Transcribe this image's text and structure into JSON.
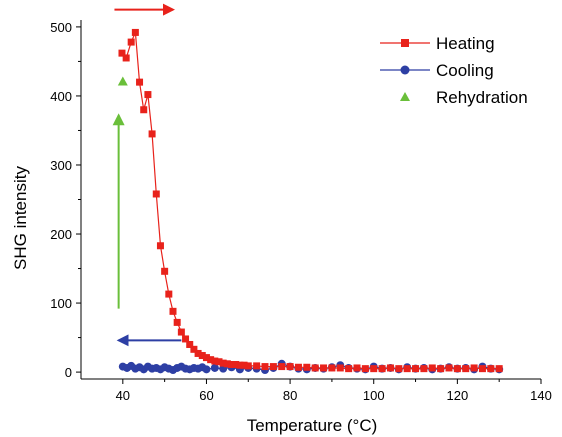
{
  "chart_data": {
    "type": "scatter",
    "title": "",
    "xlabel": "Temperature (°C)",
    "ylabel": "SHG intensity",
    "xlim": [
      30,
      140
    ],
    "ylim": [
      -10,
      510
    ],
    "x_ticks": [
      40,
      60,
      80,
      100,
      120,
      140
    ],
    "y_ticks": [
      0,
      100,
      200,
      300,
      400,
      500
    ],
    "legend_position": "top-right",
    "series": [
      {
        "name": "Heating",
        "color": "#e8221b",
        "marker": "square",
        "line": true,
        "points": [
          [
            39.8,
            462
          ],
          [
            40.8,
            455
          ],
          [
            42,
            478
          ],
          [
            43,
            492
          ],
          [
            44,
            420
          ],
          [
            45,
            380
          ],
          [
            46,
            402
          ],
          [
            47,
            345
          ],
          [
            48,
            258
          ],
          [
            49,
            183
          ],
          [
            50,
            146
          ],
          [
            51,
            113
          ],
          [
            52,
            88
          ],
          [
            53,
            72
          ],
          [
            54,
            58
          ],
          [
            55,
            48
          ],
          [
            56,
            40
          ],
          [
            57,
            33
          ],
          [
            58,
            27
          ],
          [
            59,
            24
          ],
          [
            60,
            21
          ],
          [
            61,
            18
          ],
          [
            62,
            16
          ],
          [
            63,
            15
          ],
          [
            64,
            13
          ],
          [
            65,
            12
          ],
          [
            66,
            11
          ],
          [
            67,
            11
          ],
          [
            68,
            10
          ],
          [
            69,
            10
          ],
          [
            70,
            9
          ],
          [
            72,
            9
          ],
          [
            74,
            8
          ],
          [
            76,
            8
          ],
          [
            78,
            8
          ],
          [
            80,
            8
          ],
          [
            82,
            7
          ],
          [
            84,
            7
          ],
          [
            86,
            6
          ],
          [
            88,
            6
          ],
          [
            90,
            6
          ],
          [
            92,
            6
          ],
          [
            94,
            5
          ],
          [
            96,
            6
          ],
          [
            98,
            5
          ],
          [
            100,
            5
          ],
          [
            102,
            5
          ],
          [
            104,
            6
          ],
          [
            106,
            5
          ],
          [
            108,
            5
          ],
          [
            110,
            5
          ],
          [
            112,
            5
          ],
          [
            114,
            6
          ],
          [
            116,
            5
          ],
          [
            118,
            6
          ],
          [
            120,
            5
          ],
          [
            122,
            5
          ],
          [
            124,
            6
          ],
          [
            126,
            5
          ],
          [
            128,
            5
          ],
          [
            130,
            5
          ]
        ]
      },
      {
        "name": "Cooling",
        "color": "#2d3fa4",
        "marker": "circle",
        "line": true,
        "points": [
          [
            40,
            8
          ],
          [
            41,
            6
          ],
          [
            42,
            9
          ],
          [
            43,
            5
          ],
          [
            44,
            7
          ],
          [
            45,
            4
          ],
          [
            46,
            8
          ],
          [
            47,
            5
          ],
          [
            48,
            6
          ],
          [
            49,
            4
          ],
          [
            50,
            7
          ],
          [
            51,
            5
          ],
          [
            52,
            3
          ],
          [
            53,
            6
          ],
          [
            54,
            8
          ],
          [
            55,
            5
          ],
          [
            56,
            4
          ],
          [
            57,
            6
          ],
          [
            58,
            5
          ],
          [
            59,
            7
          ],
          [
            60,
            4
          ],
          [
            62,
            6
          ],
          [
            64,
            5
          ],
          [
            66,
            7
          ],
          [
            68,
            4
          ],
          [
            70,
            6
          ],
          [
            72,
            5
          ],
          [
            74,
            3
          ],
          [
            76,
            6
          ],
          [
            78,
            12
          ],
          [
            80,
            8
          ],
          [
            82,
            5
          ],
          [
            84,
            4
          ],
          [
            86,
            6
          ],
          [
            88,
            5
          ],
          [
            90,
            7
          ],
          [
            92,
            10
          ],
          [
            94,
            6
          ],
          [
            96,
            5
          ],
          [
            98,
            4
          ],
          [
            100,
            8
          ],
          [
            102,
            5
          ],
          [
            104,
            6
          ],
          [
            106,
            4
          ],
          [
            108,
            7
          ],
          [
            110,
            5
          ],
          [
            112,
            6
          ],
          [
            114,
            4
          ],
          [
            116,
            5
          ],
          [
            118,
            7
          ],
          [
            120,
            5
          ],
          [
            122,
            6
          ],
          [
            124,
            4
          ],
          [
            126,
            8
          ],
          [
            128,
            5
          ],
          [
            130,
            4
          ]
        ]
      },
      {
        "name": "Rehydration",
        "color": "#6abf3a",
        "marker": "triangle",
        "line": false,
        "points": [
          [
            40,
            421
          ]
        ]
      }
    ],
    "annotations": [
      {
        "kind": "arrow",
        "direction": "right",
        "color": "#e8221b",
        "from": [
          38,
          525
        ],
        "to": [
          52,
          525
        ]
      },
      {
        "kind": "arrow",
        "direction": "left",
        "color": "#2d3fa4",
        "from": [
          54,
          46
        ],
        "to": [
          39,
          46
        ]
      },
      {
        "kind": "arrow",
        "direction": "up",
        "color": "#6abf3a",
        "from": [
          39,
          92
        ],
        "to": [
          39,
          372
        ]
      }
    ]
  }
}
